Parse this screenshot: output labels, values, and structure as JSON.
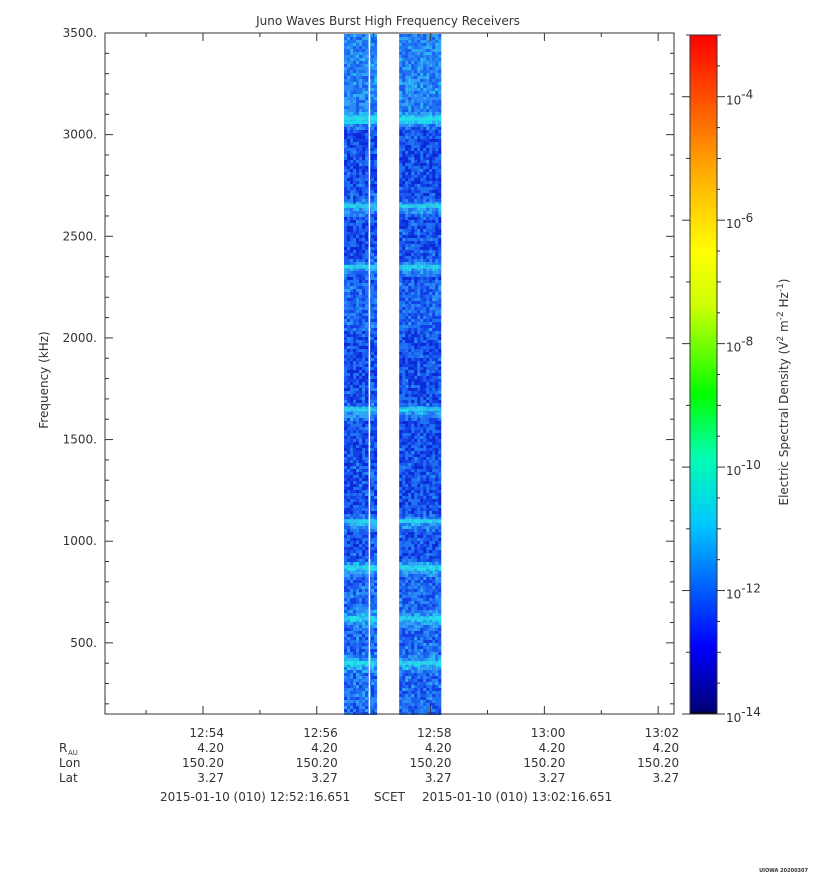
{
  "chart_data": {
    "type": "heatmap",
    "title": "Juno Waves Burst High Frequency Receivers",
    "ylabel": "Frequency (kHz)",
    "ylim": [
      150,
      3500
    ],
    "y_ticks": [
      "3500.",
      "3000.",
      "2500.",
      "2000.",
      "1500.",
      "1000.",
      "500."
    ],
    "y_tick_values": [
      3500,
      3000,
      2500,
      2000,
      1500,
      1000,
      500
    ],
    "x_ticks": [
      "12:54",
      "12:56",
      "12:58",
      "13:00",
      "13:02"
    ],
    "x_tick_minutes": [
      54,
      56,
      58,
      60,
      62
    ],
    "x_range_minutes": [
      52.278,
      62.278
    ],
    "ephemeris": {
      "rows": [
        {
          "label": "R",
          "sub": "AU",
          "values": [
            "4.20",
            "4.20",
            "4.20",
            "4.20",
            "4.20"
          ]
        },
        {
          "label": "Lon",
          "values": [
            "150.20",
            "150.20",
            "150.20",
            "150.20",
            "150.20"
          ]
        },
        {
          "label": "Lat",
          "values": [
            "3.27",
            "3.27",
            "3.27",
            "3.27",
            "3.27"
          ]
        }
      ]
    },
    "time_range": {
      "start": "2015-01-10 (010) 12:52:16.651",
      "label": "SCET",
      "end": "2015-01-10 (010) 13:02:16.651"
    },
    "data_blocks_minutes": [
      [
        56.48,
        57.03
      ],
      [
        57.45,
        58.18
      ]
    ],
    "gap_line_minutes": 57.03,
    "bright_bands_khz": [
      3080,
      2650,
      2350,
      1650,
      1100,
      870,
      620,
      400
    ],
    "colorbar": {
      "label_parts": [
        "Electric Spectral Density (V",
        "2",
        " m",
        "-2",
        " Hz",
        "-1",
        ")"
      ],
      "range_exp": [
        -14,
        -3
      ],
      "ticks": [
        {
          "base": "10",
          "exp": "-4"
        },
        {
          "base": "10",
          "exp": "-6"
        },
        {
          "base": "10",
          "exp": "-8"
        },
        {
          "base": "10",
          "exp": "-10"
        },
        {
          "base": "10",
          "exp": "-12"
        },
        {
          "base": "10",
          "exp": "-14"
        }
      ],
      "tick_exps": [
        -4,
        -6,
        -8,
        -10,
        -12,
        -14
      ]
    },
    "grid": false
  },
  "footer_tag": "UIOWA 20200307"
}
